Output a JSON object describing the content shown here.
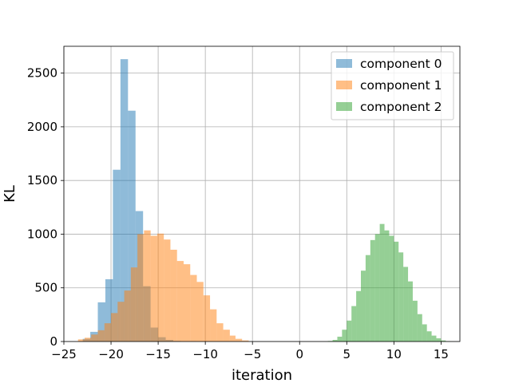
{
  "chart_data": {
    "type": "histogram",
    "title": "",
    "xlabel": "iteration",
    "ylabel": "KL",
    "xlim": [
      -25,
      17
    ],
    "ylim": [
      0,
      2750
    ],
    "xticks": [
      -25,
      -20,
      -15,
      -10,
      -5,
      0,
      5,
      10,
      15
    ],
    "yticks": [
      0,
      500,
      1000,
      1500,
      2000,
      2500
    ],
    "grid": true,
    "legend_position": "top-right",
    "series": [
      {
        "name": "component 0",
        "color": "#1f77b4",
        "opacity": 0.5,
        "bin_edges": [
          -23.0,
          -22.2,
          -21.4,
          -20.6,
          -19.8,
          -19.0,
          -18.2,
          -17.4,
          -16.6,
          -15.8,
          -15.0,
          -14.2,
          -13.4,
          -12.6,
          -11.8,
          -11.0
        ],
        "counts": [
          25,
          90,
          365,
          580,
          1600,
          2630,
          2150,
          1215,
          515,
          130,
          40,
          15,
          5,
          2,
          1
        ]
      },
      {
        "name": "component 1",
        "color": "#ff7f0e",
        "opacity": 0.5,
        "bin_edges": [
          -23.5,
          -22.8,
          -22.1,
          -21.4,
          -20.7,
          -20.0,
          -19.3,
          -18.6,
          -17.9,
          -17.2,
          -16.5,
          -15.8,
          -15.1,
          -14.4,
          -13.7,
          -13.0,
          -12.3,
          -11.6,
          -10.9,
          -10.2,
          -9.5,
          -8.8,
          -8.1,
          -7.4,
          -6.8,
          -6.1,
          -5.4
        ],
        "counts": [
          20,
          35,
          65,
          105,
          170,
          265,
          370,
          475,
          690,
          1000,
          1035,
          985,
          1005,
          950,
          855,
          750,
          720,
          620,
          555,
          430,
          300,
          170,
          110,
          55,
          25,
          10
        ]
      },
      {
        "name": "component 2",
        "color": "#2ca02c",
        "opacity": 0.5,
        "bin_edges": [
          3.0,
          3.5,
          4.0,
          4.5,
          5.0,
          5.5,
          6.0,
          6.5,
          7.0,
          7.5,
          8.0,
          8.5,
          9.0,
          9.5,
          10.0,
          10.5,
          11.0,
          11.5,
          12.0,
          12.5,
          13.0,
          13.5,
          14.0,
          14.5,
          15.0,
          15.5,
          16.0
        ],
        "counts": [
          5,
          15,
          45,
          110,
          195,
          330,
          470,
          660,
          805,
          945,
          1000,
          1095,
          1035,
          985,
          930,
          830,
          695,
          560,
          380,
          255,
          160,
          95,
          55,
          30,
          10,
          3
        ]
      }
    ]
  }
}
